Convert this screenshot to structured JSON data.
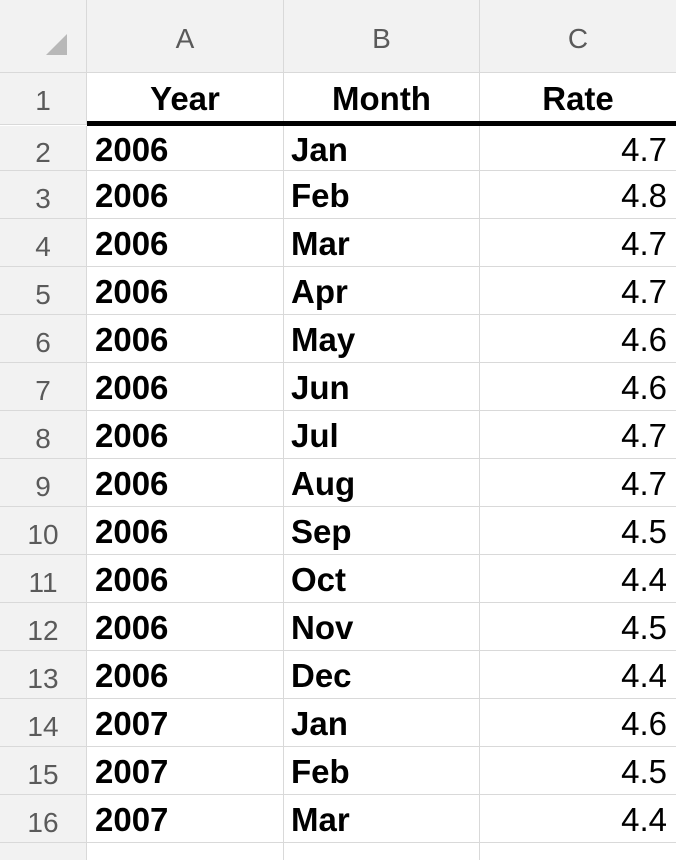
{
  "columns": [
    "A",
    "B",
    "C"
  ],
  "header_row": {
    "row_number": "1",
    "cells": [
      "Year",
      "Month",
      "Rate"
    ]
  },
  "rows": [
    {
      "row_number": "2",
      "year": "2006",
      "month": "Jan",
      "rate": "4.7"
    },
    {
      "row_number": "3",
      "year": "2006",
      "month": "Feb",
      "rate": "4.8"
    },
    {
      "row_number": "4",
      "year": "2006",
      "month": "Mar",
      "rate": "4.7"
    },
    {
      "row_number": "5",
      "year": "2006",
      "month": "Apr",
      "rate": "4.7"
    },
    {
      "row_number": "6",
      "year": "2006",
      "month": "May",
      "rate": "4.6"
    },
    {
      "row_number": "7",
      "year": "2006",
      "month": "Jun",
      "rate": "4.6"
    },
    {
      "row_number": "8",
      "year": "2006",
      "month": "Jul",
      "rate": "4.7"
    },
    {
      "row_number": "9",
      "year": "2006",
      "month": "Aug",
      "rate": "4.7"
    },
    {
      "row_number": "10",
      "year": "2006",
      "month": "Sep",
      "rate": "4.5"
    },
    {
      "row_number": "11",
      "year": "2006",
      "month": "Oct",
      "rate": "4.4"
    },
    {
      "row_number": "12",
      "year": "2006",
      "month": "Nov",
      "rate": "4.5"
    },
    {
      "row_number": "13",
      "year": "2006",
      "month": "Dec",
      "rate": "4.4"
    },
    {
      "row_number": "14",
      "year": "2007",
      "month": "Jan",
      "rate": "4.6"
    },
    {
      "row_number": "15",
      "year": "2007",
      "month": "Feb",
      "rate": "4.5"
    },
    {
      "row_number": "16",
      "year": "2007",
      "month": "Mar",
      "rate": "4.4"
    }
  ],
  "colors": {
    "header_bg": "#f2f2f2",
    "gridline": "#d9d9d9",
    "header_text": "#5a5a5a",
    "cell_text": "#000000"
  }
}
